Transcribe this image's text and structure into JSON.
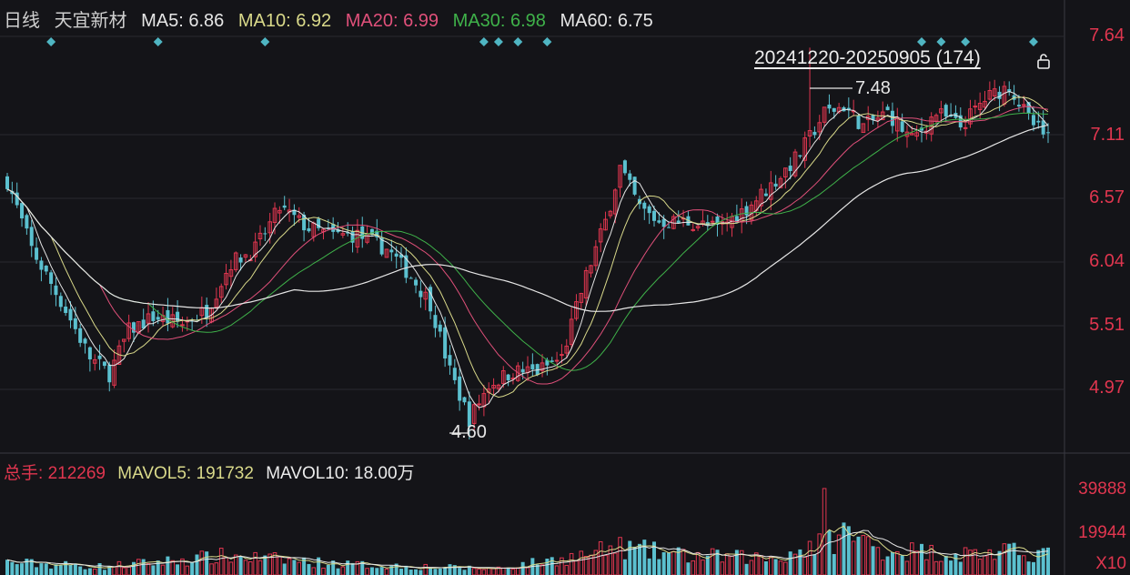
{
  "header": {
    "period": "日线",
    "stock_name": "天宜新材",
    "ma": [
      {
        "label": "MA5:",
        "value": "6.86",
        "color": "#e6e6e6"
      },
      {
        "label": "MA10:",
        "value": "6.92",
        "color": "#d9d98a"
      },
      {
        "label": "MA20:",
        "value": "6.99",
        "color": "#e0507a"
      },
      {
        "label": "MA30:",
        "value": "6.98",
        "color": "#3fb24a"
      },
      {
        "label": "MA60:",
        "value": "6.75",
        "color": "#e6e6e6"
      }
    ]
  },
  "range_label": "20241220-20250905 (174)",
  "volume_header": {
    "total_label": "总手:",
    "total_value": "212269",
    "mavol5_label": "MAVOL5:",
    "mavol5_value": "191732",
    "mavol10_label": "MAVOL10:",
    "mavol10_value": "18.00万"
  },
  "colors": {
    "up": "#e0364f",
    "down": "#5bc0cf",
    "marker": "#4fb5c2",
    "grid": "#2a2a30"
  },
  "chart_data": {
    "type": "candlestick",
    "price_ticks": [
      "7.64",
      "7.11",
      "6.57",
      "6.04",
      "5.51",
      "4.97"
    ],
    "price_range": [
      4.5,
      7.83
    ],
    "volume_ticks": [
      "39888",
      "19944"
    ],
    "volume_unit": "X10",
    "volume_range": [
      0,
      44000
    ],
    "high_annotation": "7.48",
    "low_annotation": "4.60",
    "event_markers": 12,
    "price_keys": [
      [
        0,
        6.5
      ],
      [
        5,
        6.0
      ],
      [
        12,
        5.55
      ],
      [
        17,
        5.2
      ],
      [
        21,
        5.08
      ],
      [
        25,
        5.4
      ],
      [
        30,
        5.5
      ],
      [
        36,
        5.45
      ],
      [
        41,
        5.55
      ],
      [
        46,
        5.9
      ],
      [
        51,
        6.0
      ],
      [
        56,
        6.3
      ],
      [
        62,
        6.15
      ],
      [
        67,
        6.1
      ],
      [
        72,
        6.1
      ],
      [
        78,
        6.0
      ],
      [
        83,
        5.8
      ],
      [
        87,
        5.6
      ],
      [
        91,
        5.1
      ],
      [
        95,
        4.75
      ],
      [
        99,
        5.0
      ],
      [
        104,
        5.1
      ],
      [
        109,
        5.1
      ],
      [
        114,
        5.2
      ],
      [
        119,
        5.8
      ],
      [
        123,
        6.2
      ],
      [
        126,
        6.6
      ],
      [
        130,
        6.3
      ],
      [
        134,
        6.2
      ],
      [
        140,
        6.2
      ],
      [
        146,
        6.15
      ],
      [
        152,
        6.3
      ],
      [
        158,
        6.5
      ],
      [
        163,
        6.7
      ],
      [
        168,
        7.0
      ],
      [
        172,
        7.05
      ],
      [
        176,
        6.9
      ],
      [
        181,
        7.0
      ],
      [
        186,
        6.8
      ],
      [
        191,
        7.0
      ],
      [
        196,
        6.9
      ],
      [
        201,
        7.1
      ],
      [
        206,
        7.2
      ],
      [
        210,
        6.95
      ],
      [
        214,
        6.8
      ]
    ],
    "vol_keys": [
      [
        0,
        6000
      ],
      [
        20,
        4000
      ],
      [
        45,
        9000
      ],
      [
        70,
        5000
      ],
      [
        100,
        3000
      ],
      [
        118,
        9000
      ],
      [
        126,
        13000
      ],
      [
        140,
        9000
      ],
      [
        158,
        8000
      ],
      [
        168,
        16000
      ],
      [
        172,
        20000
      ],
      [
        180,
        12000
      ],
      [
        196,
        10000
      ],
      [
        214,
        11000
      ]
    ]
  }
}
